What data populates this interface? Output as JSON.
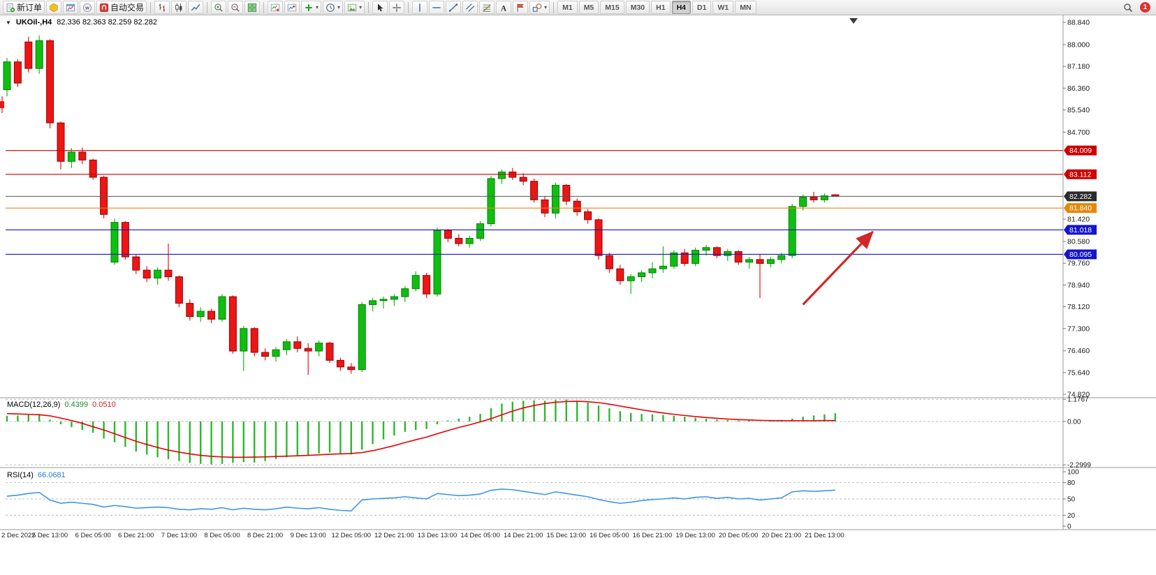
{
  "chart": {
    "collapse_icon": "▼",
    "symbol_period": "UKOil-,H4",
    "ohlc_text": "82.336 82.363 82.259 82.282"
  },
  "toolbar": {
    "items": [
      {
        "kind": "labeled",
        "name": "new-order-button",
        "icon": "new-order-icon",
        "label": "新订单"
      },
      {
        "kind": "icon",
        "name": "metaeditor-button",
        "icon": "metaeditor-icon"
      },
      {
        "kind": "icon",
        "name": "market-watch-button",
        "icon": "market-watch-icon"
      },
      {
        "kind": "icon",
        "name": "community-button",
        "icon": "community-icon"
      },
      {
        "kind": "labeled",
        "name": "autotrading-button",
        "icon": "autotrading-icon",
        "label": "自动交易"
      },
      {
        "kind": "sep"
      },
      {
        "kind": "icon",
        "name": "bar-chart-type-button",
        "icon": "ohlc-bars-icon"
      },
      {
        "kind": "icon",
        "name": "candlestick-type-button",
        "icon": "candlestick-icon"
      },
      {
        "kind": "icon",
        "name": "line-chart-type-button",
        "icon": "line-chart-icon"
      },
      {
        "kind": "sep"
      },
      {
        "kind": "icon",
        "name": "zoom-in-button",
        "icon": "zoom-in-icon"
      },
      {
        "kind": "icon",
        "name": "zoom-out-button",
        "icon": "zoom-out-icon"
      },
      {
        "kind": "icon",
        "name": "tile-windows-button",
        "icon": "tile-windows-icon"
      },
      {
        "kind": "sep"
      },
      {
        "kind": "icon",
        "name": "auto-scroll-button",
        "icon": "auto-scroll-icon"
      },
      {
        "kind": "icon",
        "name": "chart-shift-button",
        "icon": "chart-shift-icon"
      },
      {
        "kind": "icon-caret",
        "name": "indicators-button",
        "icon": "add-indicator-icon"
      },
      {
        "kind": "icon-caret",
        "name": "periods-button",
        "icon": "clock-icon"
      },
      {
        "kind": "icon-caret",
        "name": "templates-button",
        "icon": "template-icon"
      },
      {
        "kind": "sep"
      },
      {
        "kind": "icon",
        "name": "cursor-button",
        "icon": "cursor-icon"
      },
      {
        "kind": "icon",
        "name": "crosshair-button",
        "icon": "crosshair-icon"
      },
      {
        "kind": "sep"
      },
      {
        "kind": "icon",
        "name": "vertical-line-button",
        "icon": "vertical-line-icon"
      },
      {
        "kind": "icon",
        "name": "horizontal-line-button",
        "icon": "horizontal-line-icon"
      },
      {
        "kind": "icon",
        "name": "trendline-button",
        "icon": "trendline-icon"
      },
      {
        "kind": "icon",
        "name": "equidistant-channel-button",
        "icon": "channel-icon"
      },
      {
        "kind": "icon",
        "name": "fibonacci-button",
        "icon": "fibonacci-icon"
      },
      {
        "kind": "icon",
        "name": "text-tool-button",
        "icon": "text-icon"
      },
      {
        "kind": "icon",
        "name": "arrows-tool-button",
        "icon": "arrow-label-icon"
      },
      {
        "kind": "icon-caret",
        "name": "shapes-tool-button",
        "icon": "shapes-icon"
      }
    ],
    "timeframes": [
      {
        "label": "M1",
        "active": false
      },
      {
        "label": "M5",
        "active": false
      },
      {
        "label": "M15",
        "active": false
      },
      {
        "label": "M30",
        "active": false
      },
      {
        "label": "H1",
        "active": false
      },
      {
        "label": "H4",
        "active": true
      },
      {
        "label": "D1",
        "active": false
      },
      {
        "label": "W1",
        "active": false
      },
      {
        "label": "MN",
        "active": false
      }
    ],
    "right": {
      "notification_count": "1"
    }
  },
  "colors": {
    "bull": "#0fbf0f",
    "bull_border": "#067d06",
    "bear": "#ed1515",
    "bear_border": "#8f0808",
    "macd_histogram": "#2db82d",
    "macd_signal": "#e80000",
    "rsi_line": "#3d96e8",
    "current_price_line": "#555555",
    "axis_text": "#1a1a1a",
    "grid_dash": "#bdbdbd",
    "arrow": "#d22727"
  },
  "chart_data": {
    "type": "candlestick",
    "symbol": "UKOil-",
    "period": "H4",
    "ylim": [
      74.82,
      88.84
    ],
    "price_ticks": [
      "88.840",
      "88.000",
      "87.180",
      "86.360",
      "85.540",
      "84.700",
      "81.420",
      "80.580",
      "79.760",
      "78.940",
      "78.120",
      "77.300",
      "76.460",
      "75.640",
      "74.820"
    ],
    "label_every_n_candles": 4,
    "time_labels": [
      "2 Dec 2022",
      "5 Dec 13:00",
      "6 Dec 05:00",
      "6 Dec 21:00",
      "7 Dec 13:00",
      "8 Dec 05:00",
      "8 Dec 21:00",
      "9 Dec 13:00",
      "12 Dec 05:00",
      "12 Dec 21:00",
      "13 Dec 13:00",
      "14 Dec 05:00",
      "14 Dec 21:00",
      "15 Dec 13:00",
      "16 Dec 05:00",
      "16 Dec 21:00",
      "19 Dec 13:00",
      "20 Dec 05:00",
      "20 Dec 21:00",
      "21 Dec 13:00"
    ],
    "candles": [
      [
        86.3,
        87.5,
        86.05,
        87.35
      ],
      [
        87.35,
        87.45,
        86.4,
        86.55
      ],
      [
        88.1,
        88.3,
        86.95,
        87.1
      ],
      [
        87.1,
        88.35,
        86.9,
        88.15
      ],
      [
        88.15,
        88.2,
        84.85,
        85.05
      ],
      [
        85.05,
        85.1,
        83.3,
        83.6
      ],
      [
        83.6,
        84.1,
        83.35,
        83.95
      ],
      [
        83.95,
        84.12,
        83.5,
        83.65
      ],
      [
        83.65,
        83.7,
        82.9,
        83.0
      ],
      [
        83.0,
        83.05,
        81.45,
        81.6
      ],
      [
        79.8,
        81.45,
        79.7,
        81.3
      ],
      [
        81.3,
        81.35,
        79.9,
        80.0
      ],
      [
        80.0,
        80.1,
        79.35,
        79.5
      ],
      [
        79.5,
        79.65,
        79.05,
        79.2
      ],
      [
        79.2,
        79.6,
        78.95,
        79.5
      ],
      [
        79.5,
        80.5,
        79.1,
        79.25
      ],
      [
        79.25,
        79.3,
        78.1,
        78.25
      ],
      [
        78.25,
        78.4,
        77.6,
        77.75
      ],
      [
        77.75,
        78.1,
        77.55,
        77.95
      ],
      [
        77.95,
        78.05,
        77.5,
        77.65
      ],
      [
        77.65,
        78.6,
        77.55,
        78.5
      ],
      [
        78.5,
        78.55,
        76.35,
        76.45
      ],
      [
        76.45,
        77.4,
        75.7,
        77.3
      ],
      [
        77.3,
        77.35,
        76.25,
        76.4
      ],
      [
        76.4,
        76.55,
        76.1,
        76.25
      ],
      [
        76.25,
        76.6,
        76.05,
        76.5
      ],
      [
        76.5,
        76.9,
        76.3,
        76.8
      ],
      [
        76.8,
        77.0,
        76.4,
        76.55
      ],
      [
        76.55,
        76.75,
        75.55,
        76.45
      ],
      [
        76.45,
        76.85,
        76.25,
        76.75
      ],
      [
        76.75,
        76.8,
        76.0,
        76.1
      ],
      [
        76.1,
        76.2,
        75.7,
        75.85
      ],
      [
        75.85,
        76.0,
        75.6,
        75.75
      ],
      [
        75.75,
        78.3,
        75.65,
        78.2
      ],
      [
        78.2,
        78.45,
        77.95,
        78.35
      ],
      [
        78.35,
        78.5,
        78.05,
        78.4
      ],
      [
        78.4,
        78.6,
        78.15,
        78.5
      ],
      [
        78.5,
        78.9,
        78.3,
        78.8
      ],
      [
        78.8,
        79.45,
        78.7,
        79.3
      ],
      [
        79.3,
        79.4,
        78.45,
        78.6
      ],
      [
        78.6,
        81.1,
        78.5,
        81.0
      ],
      [
        81.0,
        81.05,
        80.55,
        80.7
      ],
      [
        80.7,
        80.85,
        80.4,
        80.5
      ],
      [
        80.5,
        80.8,
        80.35,
        80.7
      ],
      [
        80.7,
        81.35,
        80.6,
        81.25
      ],
      [
        81.25,
        83.05,
        81.15,
        82.95
      ],
      [
        82.95,
        83.3,
        82.75,
        83.2
      ],
      [
        83.2,
        83.35,
        82.9,
        83.0
      ],
      [
        83.0,
        83.15,
        82.7,
        82.85
      ],
      [
        82.85,
        82.95,
        82.05,
        82.15
      ],
      [
        82.15,
        82.3,
        81.5,
        81.65
      ],
      [
        81.65,
        82.8,
        81.45,
        82.7
      ],
      [
        82.7,
        82.75,
        81.95,
        82.1
      ],
      [
        82.1,
        82.2,
        81.55,
        81.7
      ],
      [
        81.7,
        81.8,
        81.25,
        81.4
      ],
      [
        81.4,
        81.45,
        79.9,
        80.05
      ],
      [
        80.05,
        80.15,
        79.4,
        79.55
      ],
      [
        79.55,
        79.7,
        78.95,
        79.1
      ],
      [
        79.1,
        79.35,
        78.6,
        79.25
      ],
      [
        79.25,
        79.5,
        79.05,
        79.4
      ],
      [
        79.4,
        79.8,
        79.2,
        79.55
      ],
      [
        79.55,
        80.4,
        79.4,
        79.65
      ],
      [
        79.65,
        80.25,
        79.55,
        80.15
      ],
      [
        80.15,
        80.3,
        79.65,
        79.75
      ],
      [
        79.75,
        80.35,
        79.65,
        80.25
      ],
      [
        80.25,
        80.45,
        80.05,
        80.35
      ],
      [
        80.35,
        80.4,
        79.95,
        80.05
      ],
      [
        80.05,
        80.3,
        79.85,
        80.2
      ],
      [
        80.2,
        80.25,
        79.7,
        79.8
      ],
      [
        79.8,
        80.0,
        79.55,
        79.9
      ],
      [
        79.9,
        80.1,
        78.45,
        79.75
      ],
      [
        79.75,
        80.0,
        79.6,
        79.9
      ],
      [
        79.9,
        80.15,
        79.75,
        80.05
      ],
      [
        80.05,
        82.0,
        79.95,
        81.9
      ],
      [
        81.9,
        82.35,
        81.75,
        82.25
      ],
      [
        82.25,
        82.45,
        82.05,
        82.15
      ],
      [
        82.15,
        82.4,
        82.05,
        82.3
      ],
      [
        82.34,
        82.36,
        82.26,
        82.28
      ]
    ],
    "levels": [
      {
        "price": 84.009,
        "label": "84.009",
        "color": "#cc0000"
      },
      {
        "price": 83.112,
        "label": "83.112",
        "color": "#cc0000"
      },
      {
        "price": 81.84,
        "label": "81.840",
        "color": "#e8860a"
      },
      {
        "price": 81.018,
        "label": "81.018",
        "color": "#1515cc"
      },
      {
        "price": 80.095,
        "label": "80.095",
        "color": "#1515cc"
      }
    ],
    "current_price": {
      "price": 82.282,
      "label": "82.282",
      "color": "#2b2b2b"
    },
    "annotations": [
      {
        "type": "arrow",
        "color": "#d22727",
        "from_candle": 74,
        "from_price": 78.2,
        "to_candle": 80.5,
        "to_price": 80.95
      }
    ],
    "macd": {
      "label": "MACD(12,26,9)",
      "main_value": "0.4399",
      "signal_value": "0.0510",
      "ylim": [
        -2.2999,
        1.1767
      ],
      "axis_ticks": [
        "1.1767",
        "0.00",
        "-2.2999"
      ],
      "histogram": [
        0.3,
        0.32,
        0.35,
        0.4,
        0.1,
        -0.15,
        -0.3,
        -0.45,
        -0.6,
        -0.9,
        -1.1,
        -1.35,
        -1.6,
        -1.75,
        -1.9,
        -2.0,
        -2.1,
        -2.2,
        -2.25,
        -2.28,
        -2.25,
        -2.2,
        -2.15,
        -2.18,
        -2.1,
        -2.0,
        -1.9,
        -1.85,
        -1.8,
        -1.7,
        -1.65,
        -1.7,
        -1.75,
        -1.5,
        -1.2,
        -0.95,
        -0.75,
        -0.55,
        -0.45,
        -0.4,
        -0.15,
        0.05,
        0.15,
        0.25,
        0.4,
        0.7,
        0.95,
        1.05,
        1.1,
        1.12,
        1.1,
        1.15,
        1.17,
        1.1,
        1.0,
        0.85,
        0.7,
        0.55,
        0.45,
        0.4,
        0.38,
        0.35,
        0.3,
        0.25,
        0.2,
        0.15,
        0.1,
        0.08,
        0.05,
        0.05,
        0.02,
        0.05,
        0.08,
        0.15,
        0.25,
        0.32,
        0.38,
        0.44
      ],
      "signal": [
        0.42,
        0.4,
        0.38,
        0.36,
        0.3,
        0.18,
        0.05,
        -0.1,
        -0.28,
        -0.45,
        -0.65,
        -0.85,
        -1.05,
        -1.22,
        -1.38,
        -1.52,
        -1.63,
        -1.72,
        -1.8,
        -1.85,
        -1.88,
        -1.9,
        -1.9,
        -1.89,
        -1.88,
        -1.86,
        -1.84,
        -1.82,
        -1.8,
        -1.77,
        -1.74,
        -1.72,
        -1.7,
        -1.65,
        -1.55,
        -1.42,
        -1.28,
        -1.12,
        -0.97,
        -0.83,
        -0.65,
        -0.48,
        -0.32,
        -0.18,
        -0.02,
        0.15,
        0.35,
        0.55,
        0.72,
        0.85,
        0.95,
        1.02,
        1.06,
        1.07,
        1.05,
        1.0,
        0.92,
        0.82,
        0.72,
        0.62,
        0.53,
        0.45,
        0.38,
        0.32,
        0.26,
        0.21,
        0.17,
        0.13,
        0.1,
        0.08,
        0.06,
        0.05,
        0.04,
        0.04,
        0.04,
        0.04,
        0.05,
        0.05
      ]
    },
    "rsi": {
      "label": "RSI(14)",
      "value": "66.0681",
      "ylim": [
        0,
        100
      ],
      "levels": [
        80,
        50,
        20
      ],
      "axis_ticks": [
        "100",
        "80",
        "50",
        "20",
        "0"
      ],
      "values": [
        55,
        57,
        60,
        62,
        48,
        42,
        44,
        42,
        40,
        35,
        38,
        36,
        33,
        34,
        35,
        34,
        31,
        30,
        32,
        31,
        34,
        30,
        33,
        31,
        30,
        32,
        35,
        33,
        32,
        34,
        31,
        29,
        28,
        48,
        50,
        51,
        52,
        54,
        52,
        50,
        60,
        58,
        56,
        57,
        59,
        66,
        68,
        67,
        64,
        61,
        58,
        63,
        60,
        57,
        54,
        49,
        45,
        42,
        44,
        47,
        49,
        50,
        52,
        50,
        53,
        54,
        51,
        53,
        50,
        51,
        48,
        50,
        52,
        63,
        65,
        64,
        65,
        66.07
      ]
    }
  }
}
